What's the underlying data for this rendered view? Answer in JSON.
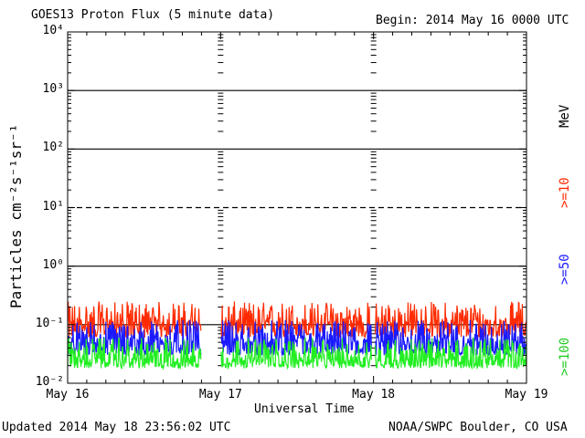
{
  "header": {
    "title": "GOES13 Proton Flux (5 minute data)",
    "begin": "Begin: 2014 May 16 0000 UTC"
  },
  "footer": {
    "updated": "Updated 2014 May 18 23:56:02 UTC",
    "credit": "NOAA/SWPC Boulder, CO USA"
  },
  "chart_data": {
    "type": "line",
    "title": "GOES13 Proton Flux (5 minute data)",
    "xlabel": "Universal Time",
    "ylabel": "Particles cm⁻²s⁻¹sr⁻¹",
    "y_scale": "log",
    "ylim": [
      0.01,
      10000
    ],
    "xlim": [
      "2014-05-16",
      "2014-05-19"
    ],
    "x_ticks": [
      "May 16",
      "May 17",
      "May 18",
      "May 19"
    ],
    "y_ticks": [
      "10⁻²",
      "10⁻¹",
      "10⁰",
      "10¹",
      "10²",
      "10³",
      "10⁴"
    ],
    "unit_label": "MeV",
    "thresholds": [
      {
        "value": 10,
        "style": "dashed"
      },
      {
        "value": 100,
        "style": "solid"
      },
      {
        "value": 1000,
        "style": "solid"
      },
      {
        "value": 1,
        "style": "solid"
      },
      {
        "value": 0.1,
        "style": "solid"
      }
    ],
    "data_gaps": [
      [
        "2014-05-16T21:00",
        "2014-05-17T00:00"
      ],
      [
        "2014-05-17T23:45",
        "2014-05-18T00:10"
      ]
    ],
    "series": [
      {
        "name": ">=10",
        "color": "#ff2a00",
        "typical": 0.1,
        "range": [
          0.06,
          0.25
        ]
      },
      {
        "name": ">=50",
        "color": "#1a1aff",
        "typical": 0.05,
        "range": [
          0.03,
          0.12
        ]
      },
      {
        "name": ">=100",
        "color": "#22ee22",
        "typical": 0.025,
        "range": [
          0.018,
          0.06
        ]
      }
    ]
  }
}
